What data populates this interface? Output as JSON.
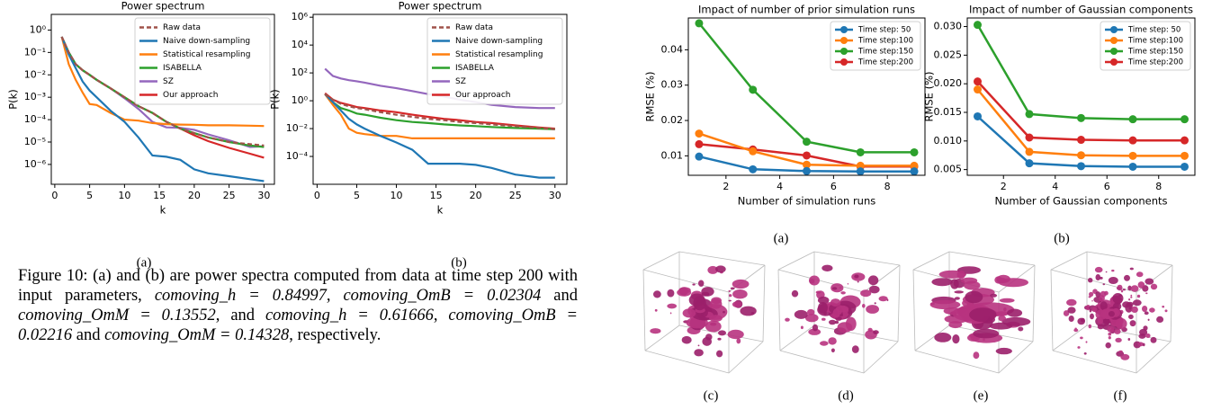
{
  "chart_data": [
    {
      "type": "line",
      "title": "Power spectrum",
      "x_label": "k",
      "y_label": "P(k)",
      "log_y": true,
      "legend": "upper right",
      "xlim": [
        -0.5,
        31.5
      ],
      "xticks": [
        0,
        5,
        10,
        15,
        20,
        25,
        30
      ],
      "ylim": [
        1.3e-07,
        5
      ],
      "yticks": [
        {
          "value": 1,
          "label": "10⁰"
        },
        {
          "value": 0.1,
          "label": "10⁻¹"
        },
        {
          "value": 0.01,
          "label": "10⁻²"
        },
        {
          "value": 0.001,
          "label": "10⁻³"
        },
        {
          "value": 0.0001,
          "label": "10⁻⁴"
        },
        {
          "value": 1e-05,
          "label": "10⁻⁵"
        },
        {
          "value": 1e-06,
          "label": "10⁻⁶"
        }
      ],
      "x": [
        1,
        2,
        3,
        4,
        5,
        6,
        8,
        10,
        12,
        14,
        16,
        18,
        20,
        22,
        25,
        28,
        30
      ],
      "series": [
        {
          "name": "Raw data",
          "color": "#a0524a",
          "dashed": true,
          "values": [
            0.5,
            0.1,
            0.03,
            0.016,
            0.01,
            0.006,
            0.0025,
            0.001,
            0.0004,
            0.0002,
            8e-05,
            4e-05,
            2.5e-05,
            1.6e-05,
            1e-05,
            8e-06,
            7e-06
          ]
        },
        {
          "name": "Naive down-sampling",
          "color": "#1f77b4",
          "values": [
            0.5,
            0.08,
            0.02,
            0.005,
            0.002,
            0.001,
            0.00025,
            8e-05,
            1.6e-05,
            2.5e-06,
            2.2e-06,
            1.6e-06,
            6e-07,
            4e-07,
            3e-07,
            2.2e-07,
            1.8e-07
          ]
        },
        {
          "name": "Statistical resampling",
          "color": "#ff7f0e",
          "values": [
            0.5,
            0.03,
            0.006,
            0.0016,
            0.0005,
            0.00045,
            0.0002,
            0.0001,
            9e-05,
            7e-05,
            6.3e-05,
            6e-05,
            5.9e-05,
            5.6e-05,
            5.6e-05,
            5.4e-05,
            5.2e-05
          ]
        },
        {
          "name": "ISABELLA",
          "color": "#2ca02c",
          "values": [
            0.5,
            0.1,
            0.03,
            0.016,
            0.01,
            0.006,
            0.0025,
            0.001,
            0.0004,
            0.0002,
            8e-05,
            4e-05,
            2.5e-05,
            1.6e-05,
            1e-05,
            7e-06,
            6e-06
          ]
        },
        {
          "name": "SZ",
          "color": "#9467bd",
          "values": [
            0.5,
            0.1,
            0.03,
            0.016,
            0.01,
            0.006,
            0.0025,
            0.0009,
            0.0003,
            8e-05,
            4.5e-05,
            4.3e-05,
            3.5e-05,
            2.2e-05,
            1.2e-05,
            6e-06,
            6.5e-06
          ]
        },
        {
          "name": "Our approach",
          "color": "#d62728",
          "values": [
            0.5,
            0.1,
            0.03,
            0.016,
            0.01,
            0.006,
            0.0025,
            0.001,
            0.0004,
            0.0002,
            8e-05,
            4e-05,
            2e-05,
            1.1e-05,
            5.5e-06,
            3e-06,
            2e-06
          ]
        }
      ]
    },
    {
      "type": "line",
      "title": "Power spectrum",
      "x_label": "k",
      "y_label": "P(k)",
      "log_y": true,
      "legend": "upper right",
      "xlim": [
        -0.5,
        31.5
      ],
      "xticks": [
        0,
        5,
        10,
        15,
        20,
        25,
        30
      ],
      "ylim": [
        1e-06,
        1600000.0
      ],
      "yticks": [
        {
          "value": 1000000,
          "label": "10⁶"
        },
        {
          "value": 10000,
          "label": "10⁴"
        },
        {
          "value": 100,
          "label": "10²"
        },
        {
          "value": 1,
          "label": "10⁰"
        },
        {
          "value": 0.01,
          "label": "10⁻²"
        },
        {
          "value": 0.0001,
          "label": "10⁻⁴"
        }
      ],
      "x": [
        1,
        2,
        3,
        4,
        5,
        6,
        8,
        10,
        12,
        14,
        16,
        18,
        20,
        22,
        25,
        28,
        30
      ],
      "series": [
        {
          "name": "Raw data",
          "color": "#a0524a",
          "dashed": true,
          "values": [
            3,
            1.2,
            0.6,
            0.4,
            0.3,
            0.25,
            0.15,
            0.1,
            0.07,
            0.05,
            0.04,
            0.03,
            0.025,
            0.02,
            0.015,
            0.011,
            0.009
          ]
        },
        {
          "name": "Naive down-sampling",
          "color": "#1f77b4",
          "values": [
            3,
            0.8,
            0.2,
            0.05,
            0.02,
            0.01,
            0.003,
            0.001,
            0.0003,
            3e-05,
            3e-05,
            3e-05,
            2.5e-05,
            1.5e-05,
            5e-06,
            3e-06,
            3e-06
          ]
        },
        {
          "name": "Statistical resampling",
          "color": "#ff7f0e",
          "values": [
            3,
            0.5,
            0.1,
            0.01,
            0.005,
            0.004,
            0.003,
            0.003,
            0.002,
            0.002,
            0.002,
            0.002,
            0.002,
            0.002,
            0.002,
            0.002,
            0.002
          ]
        },
        {
          "name": "ISABELLA",
          "color": "#2ca02c",
          "values": [
            3,
            0.8,
            0.3,
            0.2,
            0.12,
            0.1,
            0.06,
            0.04,
            0.03,
            0.025,
            0.02,
            0.017,
            0.015,
            0.013,
            0.011,
            0.01,
            0.009
          ]
        },
        {
          "name": "SZ",
          "color": "#9467bd",
          "values": [
            200,
            60,
            40,
            30,
            25,
            20,
            12,
            8,
            5,
            3,
            2,
            1.2,
            0.8,
            0.5,
            0.35,
            0.3,
            0.3
          ]
        },
        {
          "name": "Our approach",
          "color": "#d62728",
          "values": [
            3.5,
            1.2,
            0.7,
            0.5,
            0.35,
            0.3,
            0.2,
            0.15,
            0.1,
            0.07,
            0.05,
            0.04,
            0.03,
            0.025,
            0.017,
            0.012,
            0.01
          ]
        }
      ]
    },
    {
      "type": "line",
      "title": "Impact of number of prior simulation runs",
      "x_label": "Number of simulation runs",
      "y_label": "RMSE (%)",
      "log_y": false,
      "legend": "upper right",
      "markers": true,
      "xlim": [
        0.6,
        9.4
      ],
      "xticks": [
        2,
        4,
        6,
        8
      ],
      "ylim": [
        0.0045,
        0.049
      ],
      "yticks": [
        0.01,
        0.02,
        0.03,
        0.04
      ],
      "x": [
        1,
        3,
        5,
        7,
        9
      ],
      "series": [
        {
          "name": "Time step: 50",
          "color": "#1f77b4",
          "values": [
            0.0098,
            0.0062,
            0.0057,
            0.0056,
            0.0056
          ]
        },
        {
          "name": "Time step:100",
          "color": "#ff7f0e",
          "values": [
            0.0163,
            0.0113,
            0.0075,
            0.0072,
            0.0072
          ]
        },
        {
          "name": "Time step:150",
          "color": "#2ca02c",
          "values": [
            0.0475,
            0.0287,
            0.014,
            0.011,
            0.011
          ]
        },
        {
          "name": "Time step:200",
          "color": "#d62728",
          "values": [
            0.0133,
            0.0118,
            0.0101,
            0.007,
            0.007
          ]
        }
      ]
    },
    {
      "type": "line",
      "title": "Impact of number of Gaussian components",
      "x_label": "Number of Gaussian components",
      "y_label": "RMSE (%)",
      "log_y": false,
      "legend": "upper right",
      "markers": true,
      "xlim": [
        0.6,
        9.4
      ],
      "xticks": [
        2,
        4,
        6,
        8
      ],
      "ylim": [
        0.004,
        0.0315
      ],
      "yticks": [
        {
          "value": 0.005,
          "label": "0.005"
        },
        {
          "value": 0.01,
          "label": "0.010"
        },
        {
          "value": 0.015,
          "label": "0.015"
        },
        {
          "value": 0.02,
          "label": "0.020"
        },
        {
          "value": 0.025,
          "label": "0.025"
        },
        {
          "value": 0.03,
          "label": "0.030"
        }
      ],
      "x": [
        1,
        3,
        5,
        7,
        9
      ],
      "series": [
        {
          "name": "Time step: 50",
          "color": "#1f77b4",
          "values": [
            0.0143,
            0.0061,
            0.0056,
            0.0055,
            0.0055
          ]
        },
        {
          "name": "Time step:100",
          "color": "#ff7f0e",
          "values": [
            0.019,
            0.0081,
            0.0075,
            0.0074,
            0.0074
          ]
        },
        {
          "name": "Time step:150",
          "color": "#2ca02c",
          "values": [
            0.0303,
            0.0147,
            0.014,
            0.0138,
            0.0138
          ]
        },
        {
          "name": "Time step:200",
          "color": "#d62728",
          "values": [
            0.0204,
            0.0106,
            0.0102,
            0.0101,
            0.0101
          ]
        }
      ]
    }
  ],
  "subfigure_labels": [
    "(a)",
    "(b)",
    "(a)",
    "(b)",
    "(c)",
    "(d)",
    "(e)",
    "(f)"
  ],
  "caption_parts": [
    "Figure 10: (a) and (b) are power spectra computed from data at time step 200 with input parameters, ",
    "comoving_h = 0.84997",
    ", ",
    "comoving_OmB = 0.02304",
    " and ",
    "comoving_OmM = 0.13552",
    ", and ",
    "comoving_h = 0.61666",
    ", ",
    "comoving_OmB = 0.02216",
    " and ",
    "comoving_OmM = 0.14328",
    ", respectively."
  ]
}
